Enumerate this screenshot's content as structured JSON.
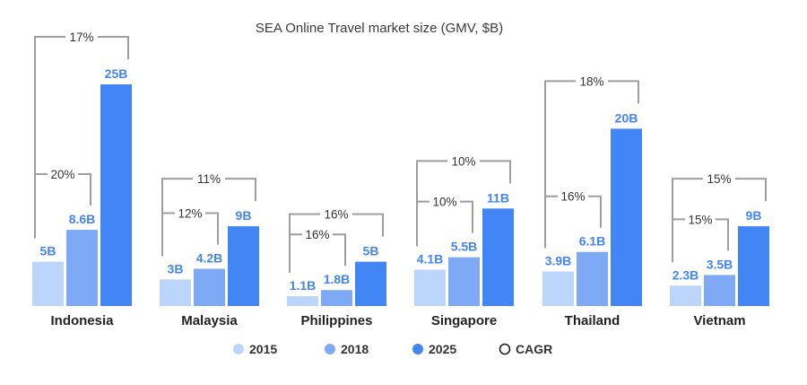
{
  "chart_data": {
    "type": "bar",
    "title": "SEA Online Travel market size (GMV, $B)",
    "categories": [
      "Indonesia",
      "Malaysia",
      "Philippines",
      "Singapore",
      "Thailand",
      "Vietnam"
    ],
    "series": [
      {
        "name": "2015",
        "color": "#bcd5fb",
        "values": [
          5,
          3,
          1.1,
          4.1,
          3.9,
          2.3
        ],
        "labels": [
          "5B",
          "3B",
          "1.1B",
          "4.1B",
          "3.9B",
          "2.3B"
        ]
      },
      {
        "name": "2018",
        "color": "#7eaaf5",
        "values": [
          8.6,
          4.2,
          1.8,
          5.5,
          6.1,
          3.5
        ],
        "labels": [
          "8.6B",
          "4.2B",
          "1.8B",
          "5.5B",
          "6.1B",
          "3.5B"
        ]
      },
      {
        "name": "2025",
        "color": "#4285f4",
        "values": [
          25,
          9,
          5,
          11,
          20,
          9
        ],
        "labels": [
          "25B",
          "9B",
          "5B",
          "11B",
          "20B",
          "9B"
        ]
      }
    ],
    "cagr_2015_2018": [
      "20%",
      "12%",
      "16%",
      "10%",
      "16%",
      "15%"
    ],
    "cagr_2015_2025": [
      "17%",
      "11%",
      "16%",
      "10%",
      "18%",
      "15%"
    ],
    "legend": {
      "items": [
        {
          "label": "2015",
          "color": "#bcd5fb",
          "marker": "filled-circle"
        },
        {
          "label": "2018",
          "color": "#7eaaf5",
          "marker": "filled-circle"
        },
        {
          "label": "2025",
          "color": "#4285f4",
          "marker": "filled-circle"
        },
        {
          "label": "CAGR",
          "color": "#222222",
          "marker": "open-circle"
        }
      ],
      "placement": "bottom"
    },
    "value_label_color": "#4285f4",
    "grid": false
  }
}
